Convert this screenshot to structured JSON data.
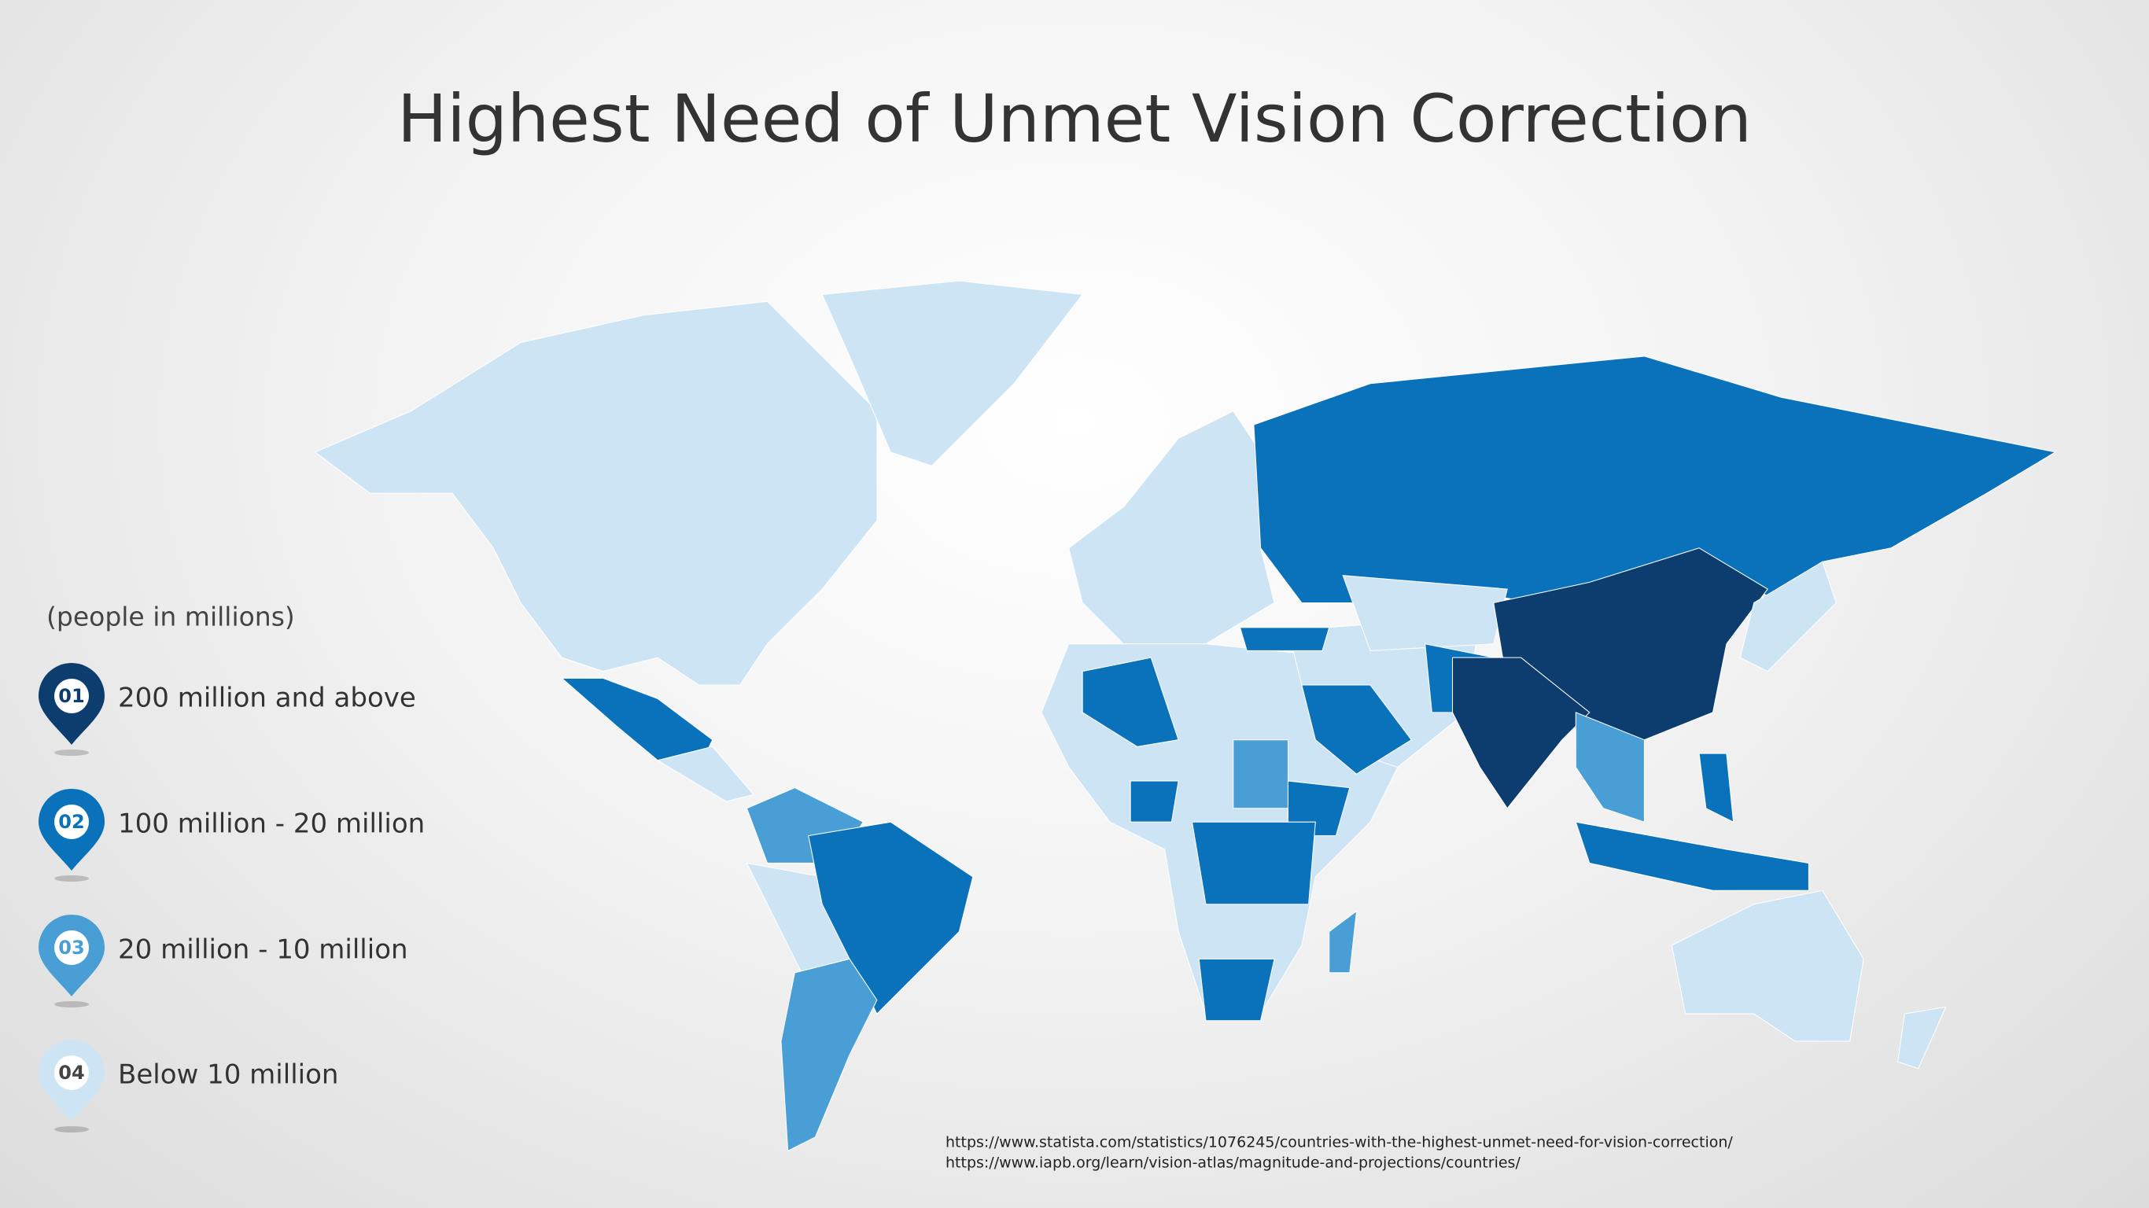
{
  "title": "Highest Need of Unmet Vision Correction",
  "legend": {
    "note": "(people in millions)",
    "items": [
      {
        "badge": "01",
        "label": "200 million and above",
        "color": "#0d3d6e"
      },
      {
        "badge": "02",
        "label": "100 million - 20 million",
        "color": "#0a72ba"
      },
      {
        "badge": "03",
        "label": "20 million - 10 million",
        "color": "#4a9ed6"
      },
      {
        "badge": "04",
        "label": "Below 10 million",
        "color": "#cde4f4"
      }
    ]
  },
  "sources": [
    "https://www.statista.com/statistics/1076245/countries-with-the-highest-unmet-need-for-vision-correction/",
    "https://www.iapb.org/learn/vision-atlas/magnitude-and-projections/countries/"
  ]
}
